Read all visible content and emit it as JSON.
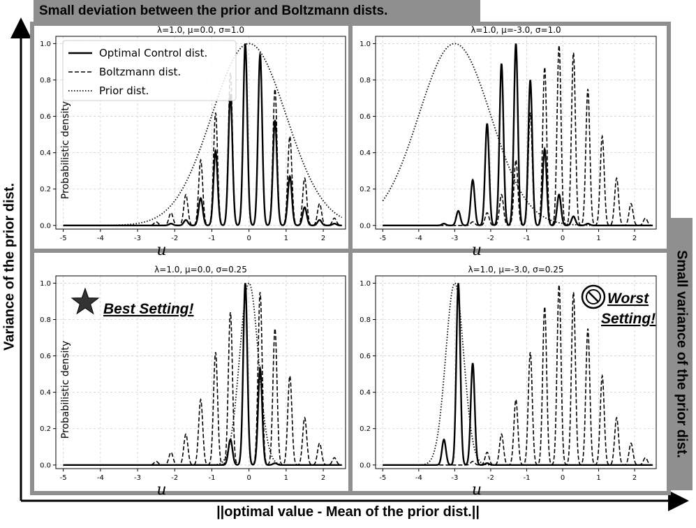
{
  "banner_top": "Small deviation between the prior and Boltzmann dists.",
  "banner_right": "Small variance of the prior dist.",
  "axis_y": "Variance of the prior dist.",
  "axis_x": "||optimal value - Mean of the prior dist.||",
  "colors": {
    "banner": "#8f8f8f",
    "line": "#000000",
    "grid": "#cfcfcf"
  },
  "chart_data": [
    {
      "type": "line",
      "title": "λ=1.0, μ=0.0, σ=1.0",
      "xlabel": "u",
      "ylabel": "Probabilistic density",
      "xlim": [
        -5.2,
        2.6
      ],
      "ylim": [
        -0.02,
        1.04
      ],
      "xticks": [
        -5,
        -4,
        -3,
        -2,
        -1,
        0,
        1,
        2
      ],
      "yticks": [
        0.0,
        0.2,
        0.4,
        0.6,
        0.8,
        1.0
      ],
      "grid": true,
      "legend": {
        "placement": "top-left",
        "entries": [
          "Optimal Control dist.",
          "Boltzmann dist.",
          "Prior dist."
        ]
      },
      "prior": {
        "mu": 0.0,
        "sigma": 1.0
      },
      "series": [
        {
          "name": "Optimal Control dist.",
          "style": "solid",
          "peaks": [
            [
              -2.1,
              0.01
            ],
            [
              -1.7,
              0.03
            ],
            [
              -1.3,
              0.15
            ],
            [
              -0.9,
              0.41
            ],
            [
              -0.5,
              0.72
            ],
            [
              -0.1,
              1.0
            ],
            [
              0.3,
              0.94
            ],
            [
              0.7,
              0.58
            ],
            [
              1.1,
              0.27
            ],
            [
              1.5,
              0.1
            ],
            [
              1.9,
              0.03
            ],
            [
              2.3,
              0.01
            ]
          ]
        },
        {
          "name": "Boltzmann dist.",
          "style": "dashed",
          "peaks": [
            [
              -2.5,
              0.02
            ],
            [
              -2.1,
              0.07
            ],
            [
              -1.7,
              0.17
            ],
            [
              -1.3,
              0.36
            ],
            [
              -0.9,
              0.62
            ],
            [
              -0.5,
              0.84
            ],
            [
              -0.1,
              1.0
            ],
            [
              0.3,
              0.95
            ],
            [
              0.7,
              0.75
            ],
            [
              1.1,
              0.49
            ],
            [
              1.5,
              0.26
            ],
            [
              1.9,
              0.12
            ],
            [
              2.3,
              0.04
            ]
          ]
        },
        {
          "name": "Prior dist.",
          "style": "dotted",
          "gaussian": {
            "mu": 0.0,
            "sigma": 1.0
          }
        }
      ]
    },
    {
      "type": "line",
      "title": "λ=1.0, μ=-3.0, σ=1.0",
      "xlabel": "u",
      "ylabel": "",
      "xlim": [
        -5.2,
        2.6
      ],
      "ylim": [
        -0.02,
        1.04
      ],
      "xticks": [
        -5,
        -4,
        -3,
        -2,
        -1,
        0,
        1,
        2
      ],
      "yticks": [
        0.0,
        0.2,
        0.4,
        0.6,
        0.8,
        1.0
      ],
      "grid": true,
      "prior": {
        "mu": -3.0,
        "sigma": 1.0
      },
      "series": [
        {
          "name": "Optimal Control dist.",
          "style": "solid",
          "peaks": [
            [
              -3.3,
              0.01
            ],
            [
              -2.9,
              0.08
            ],
            [
              -2.5,
              0.25
            ],
            [
              -2.1,
              0.56
            ],
            [
              -1.7,
              0.89
            ],
            [
              -1.3,
              1.0
            ],
            [
              -0.9,
              0.8
            ],
            [
              -0.5,
              0.42
            ],
            [
              -0.1,
              0.17
            ],
            [
              0.3,
              0.05
            ],
            [
              0.7,
              0.01
            ]
          ]
        },
        {
          "name": "Boltzmann dist.",
          "style": "dashed",
          "peaks": [
            [
              -2.5,
              0.02
            ],
            [
              -2.1,
              0.07
            ],
            [
              -1.7,
              0.17
            ],
            [
              -1.3,
              0.36
            ],
            [
              -0.9,
              0.62
            ],
            [
              -0.5,
              0.87
            ],
            [
              -0.1,
              0.99
            ],
            [
              0.3,
              0.95
            ],
            [
              0.7,
              0.75
            ],
            [
              1.1,
              0.49
            ],
            [
              1.5,
              0.26
            ],
            [
              1.9,
              0.12
            ],
            [
              2.3,
              0.04
            ]
          ]
        },
        {
          "name": "Prior dist.",
          "style": "dotted",
          "gaussian": {
            "mu": -3.0,
            "sigma": 1.0
          }
        }
      ]
    },
    {
      "type": "line",
      "title": "λ=1.0, μ=0.0, σ=0.25",
      "xlabel": "u",
      "ylabel": "Probabilistic density",
      "xlim": [
        -5.2,
        2.6
      ],
      "ylim": [
        -0.02,
        1.04
      ],
      "xticks": [
        -5,
        -4,
        -3,
        -2,
        -1,
        0,
        1,
        2
      ],
      "yticks": [
        0.0,
        0.2,
        0.4,
        0.6,
        0.8,
        1.0
      ],
      "grid": true,
      "annotation": {
        "text": "Best Setting!",
        "icon": "star-icon"
      },
      "prior": {
        "mu": 0.0,
        "sigma": 0.25
      },
      "series": [
        {
          "name": "Optimal Control dist.",
          "style": "solid",
          "peaks": [
            [
              -0.5,
              0.14
            ],
            [
              -0.1,
              1.0
            ],
            [
              0.3,
              0.53
            ],
            [
              0.7,
              0.01
            ]
          ]
        },
        {
          "name": "Boltzmann dist.",
          "style": "dashed",
          "peaks": [
            [
              -2.5,
              0.02
            ],
            [
              -2.1,
              0.07
            ],
            [
              -1.7,
              0.17
            ],
            [
              -1.3,
              0.36
            ],
            [
              -0.9,
              0.62
            ],
            [
              -0.5,
              0.84
            ],
            [
              -0.1,
              1.0
            ],
            [
              0.3,
              0.95
            ],
            [
              0.7,
              0.75
            ],
            [
              1.1,
              0.49
            ],
            [
              1.5,
              0.26
            ],
            [
              1.9,
              0.12
            ],
            [
              2.3,
              0.04
            ]
          ]
        },
        {
          "name": "Prior dist.",
          "style": "dotted",
          "gaussian": {
            "mu": 0.0,
            "sigma": 0.25
          }
        }
      ]
    },
    {
      "type": "line",
      "title": "λ=1.0, μ=-3.0, σ=0.25",
      "xlabel": "u",
      "ylabel": "",
      "xlim": [
        -5.2,
        2.6
      ],
      "ylim": [
        -0.02,
        1.04
      ],
      "xticks": [
        -5,
        -4,
        -3,
        -2,
        -1,
        0,
        1,
        2
      ],
      "yticks": [
        0.0,
        0.2,
        0.4,
        0.6,
        0.8,
        1.0
      ],
      "grid": true,
      "annotation": {
        "text_line1": "Worst",
        "text_line2": "Setting!",
        "icon": "prohibited-icon"
      },
      "prior": {
        "mu": -3.0,
        "sigma": 0.25
      },
      "series": [
        {
          "name": "Optimal Control dist.",
          "style": "solid",
          "peaks": [
            [
              -3.3,
              0.14
            ],
            [
              -2.9,
              1.0
            ],
            [
              -2.5,
              0.56
            ],
            [
              -2.1,
              0.01
            ]
          ]
        },
        {
          "name": "Boltzmann dist.",
          "style": "dashed",
          "peaks": [
            [
              -2.5,
              0.02
            ],
            [
              -2.1,
              0.07
            ],
            [
              -1.7,
              0.17
            ],
            [
              -1.3,
              0.36
            ],
            [
              -0.9,
              0.62
            ],
            [
              -0.5,
              0.87
            ],
            [
              -0.1,
              0.99
            ],
            [
              0.3,
              0.95
            ],
            [
              0.7,
              0.75
            ],
            [
              1.1,
              0.49
            ],
            [
              1.5,
              0.26
            ],
            [
              1.9,
              0.12
            ],
            [
              2.3,
              0.04
            ]
          ]
        },
        {
          "name": "Prior dist.",
          "style": "dotted",
          "gaussian": {
            "mu": -3.0,
            "sigma": 0.25
          }
        }
      ]
    }
  ]
}
